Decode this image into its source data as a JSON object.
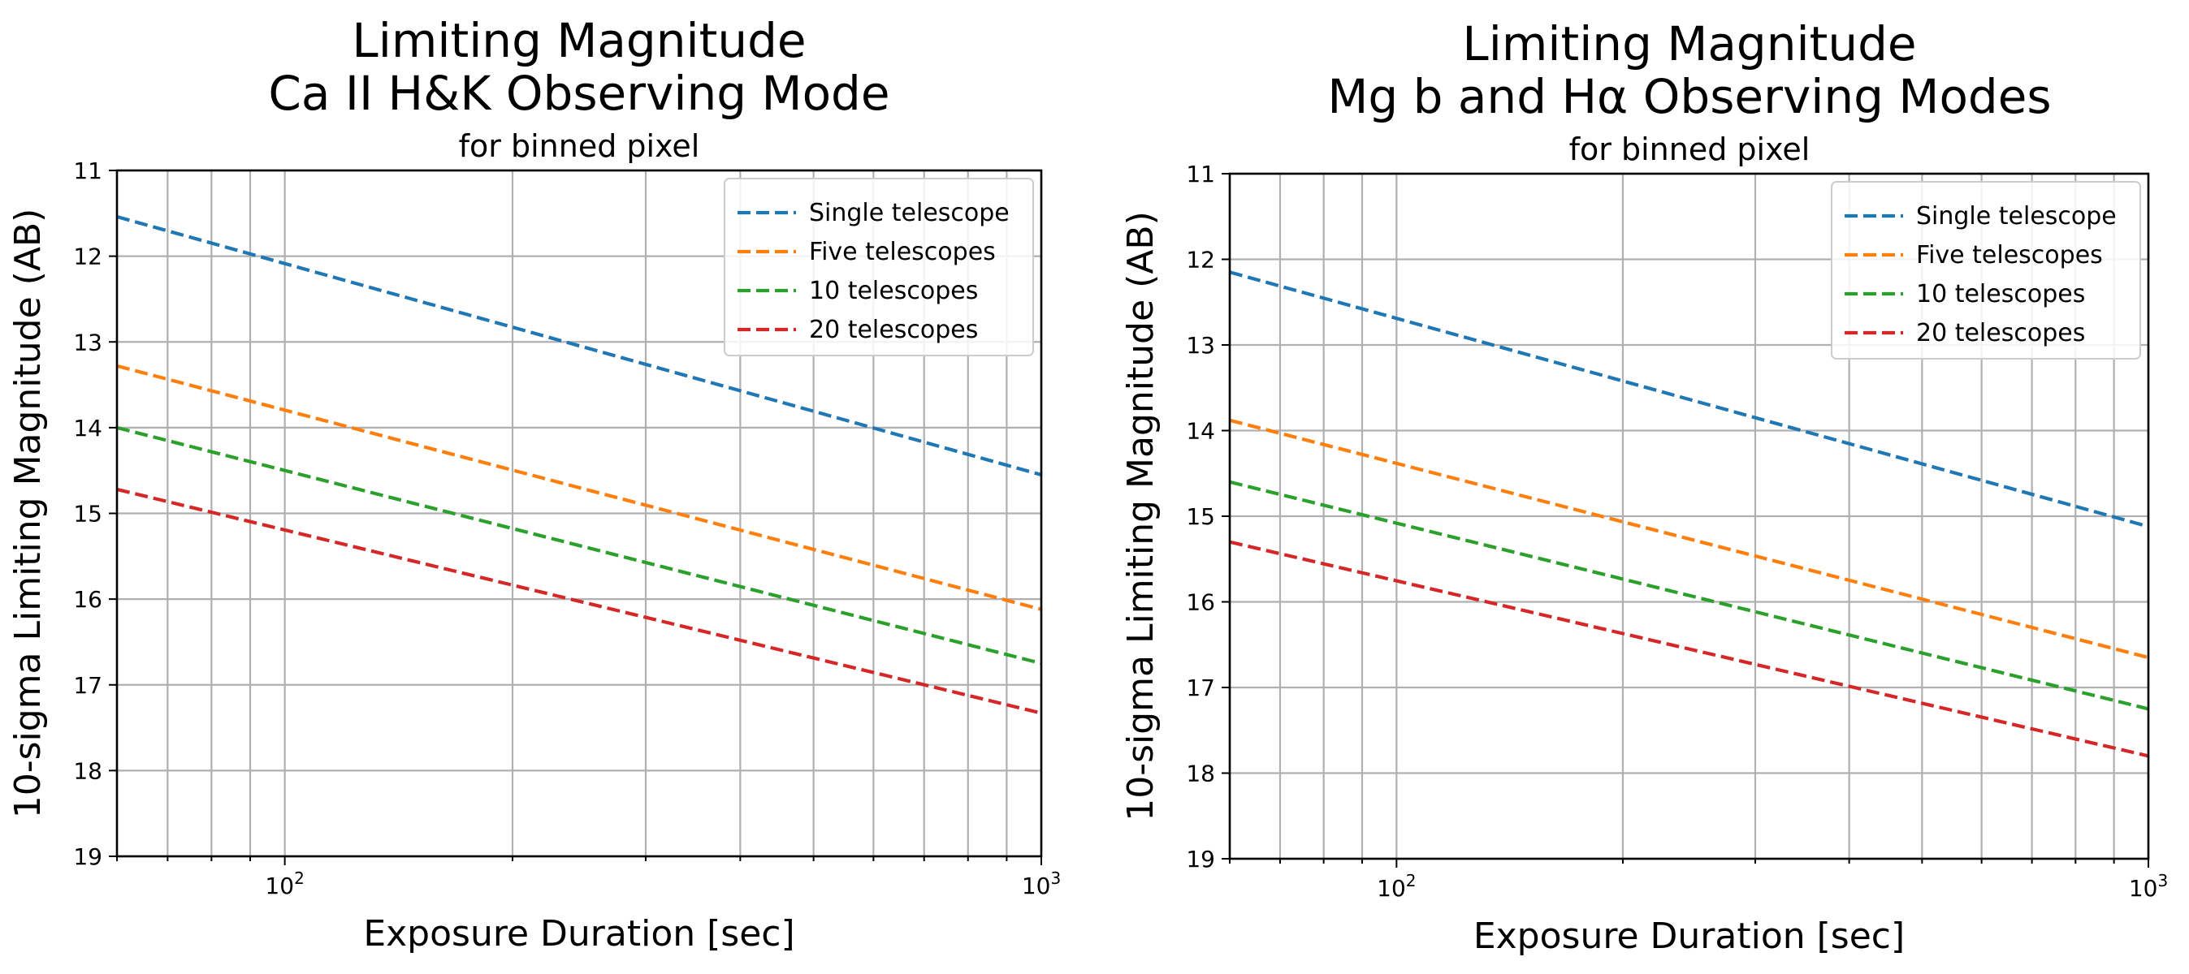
{
  "chart_data": [
    {
      "type": "line",
      "title": "Limiting Magnitude",
      "title_line2": "Ca II H&K Observing Mode",
      "subtitle": "for binned pixel",
      "xlabel": "Exposure Duration [sec]",
      "ylabel": "10-sigma Limiting Magnitude (AB)",
      "xscale": "log",
      "xlim": [
        60,
        1000
      ],
      "ylim": [
        19,
        11
      ],
      "y_inverted": true,
      "grid": true,
      "legend_position": "upper-right",
      "xticks": [
        {
          "base": "10",
          "exp": "2",
          "value": 100
        },
        {
          "base": "10",
          "exp": "3",
          "value": 1000
        }
      ],
      "yticks": [
        "11",
        "12",
        "13",
        "14",
        "15",
        "16",
        "17",
        "18",
        "19"
      ],
      "series": [
        {
          "name": "Single telescope",
          "color": "#1f77b4",
          "x": [
            60,
            1000
          ],
          "y": [
            11.54,
            14.55
          ]
        },
        {
          "name": "Five telescopes",
          "color": "#ff7f0e",
          "x": [
            60,
            1000
          ],
          "y": [
            13.28,
            16.12
          ]
        },
        {
          "name": "10 telescopes",
          "color": "#2ca02c",
          "x": [
            60,
            1000
          ],
          "y": [
            14.0,
            16.75
          ]
        },
        {
          "name": "20 telescopes",
          "color": "#d62728",
          "x": [
            60,
            1000
          ],
          "y": [
            14.72,
            17.33
          ]
        }
      ]
    },
    {
      "type": "line",
      "title": "Limiting Magnitude",
      "title_line2": "Mg b and Hα Observing Modes",
      "subtitle": "for binned pixel",
      "xlabel": "Exposure Duration [sec]",
      "ylabel": "10-sigma Limiting Magnitude (AB)",
      "xscale": "log",
      "xlim": [
        60,
        1000
      ],
      "ylim": [
        19,
        11
      ],
      "y_inverted": true,
      "grid": true,
      "legend_position": "upper-right",
      "xticks": [
        {
          "base": "10",
          "exp": "2",
          "value": 100
        },
        {
          "base": "10",
          "exp": "3",
          "value": 1000
        }
      ],
      "yticks": [
        "11",
        "12",
        "13",
        "14",
        "15",
        "16",
        "17",
        "18",
        "19"
      ],
      "series": [
        {
          "name": "Single telescope",
          "color": "#1f77b4",
          "x": [
            60,
            1000
          ],
          "y": [
            12.15,
            15.12
          ]
        },
        {
          "name": "Five telescopes",
          "color": "#ff7f0e",
          "x": [
            60,
            1000
          ],
          "y": [
            13.88,
            16.65
          ]
        },
        {
          "name": "10 telescopes",
          "color": "#2ca02c",
          "x": [
            60,
            1000
          ],
          "y": [
            14.6,
            17.25
          ]
        },
        {
          "name": "20 telescopes",
          "color": "#d62728",
          "x": [
            60,
            1000
          ],
          "y": [
            15.3,
            17.8
          ]
        }
      ]
    }
  ]
}
